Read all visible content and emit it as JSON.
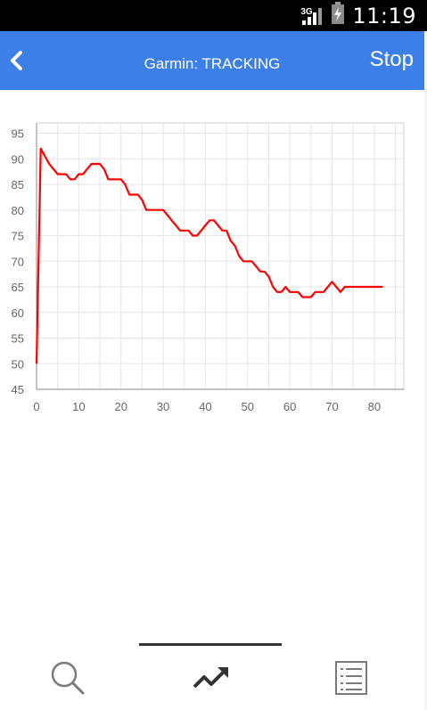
{
  "status_bar": {
    "time": "11:19",
    "network": "3G",
    "icons": [
      "signal-icon",
      "battery-charging-icon"
    ]
  },
  "app_bar": {
    "title": "Garmin: TRACKING",
    "stop_label": "Stop",
    "back_icon": "chevron-left-icon",
    "color": "#3d7fe8"
  },
  "chart_data": {
    "type": "line",
    "title": "",
    "xlabel": "",
    "ylabel": "",
    "xlim": [
      0,
      87
    ],
    "ylim": [
      45,
      97
    ],
    "x_ticks": [
      0,
      10,
      20,
      30,
      40,
      50,
      60,
      70,
      80
    ],
    "y_ticks": [
      45,
      50,
      55,
      60,
      65,
      70,
      75,
      80,
      85,
      90,
      95
    ],
    "grid": true,
    "line_color": "#ff0000",
    "series": [
      {
        "points": [
          [
            0,
            50
          ],
          [
            1,
            92
          ],
          [
            3,
            89
          ],
          [
            4,
            88
          ],
          [
            5,
            87
          ],
          [
            6,
            87
          ],
          [
            7,
            87
          ],
          [
            8,
            86
          ],
          [
            9,
            86
          ],
          [
            10,
            87
          ],
          [
            11,
            87
          ],
          [
            12,
            88
          ],
          [
            13,
            89
          ],
          [
            14,
            89
          ],
          [
            15,
            89
          ],
          [
            16,
            88
          ],
          [
            17,
            86
          ],
          [
            18,
            86
          ],
          [
            19,
            86
          ],
          [
            20,
            86
          ],
          [
            21,
            85
          ],
          [
            22,
            83
          ],
          [
            23,
            83
          ],
          [
            24,
            83
          ],
          [
            25,
            82
          ],
          [
            26,
            80
          ],
          [
            27,
            80
          ],
          [
            28,
            80
          ],
          [
            29,
            80
          ],
          [
            30,
            80
          ],
          [
            31,
            79
          ],
          [
            32,
            78
          ],
          [
            33,
            77
          ],
          [
            34,
            76
          ],
          [
            35,
            76
          ],
          [
            36,
            76
          ],
          [
            37,
            75
          ],
          [
            38,
            75
          ],
          [
            39,
            76
          ],
          [
            40,
            77
          ],
          [
            41,
            78
          ],
          [
            42,
            78
          ],
          [
            43,
            77
          ],
          [
            44,
            76
          ],
          [
            45,
            76
          ],
          [
            46,
            74
          ],
          [
            47,
            73
          ],
          [
            48,
            71
          ],
          [
            49,
            70
          ],
          [
            50,
            70
          ],
          [
            51,
            70
          ],
          [
            52,
            69
          ],
          [
            53,
            68
          ],
          [
            54,
            68
          ],
          [
            55,
            67
          ],
          [
            56,
            65
          ],
          [
            57,
            64
          ],
          [
            58,
            64
          ],
          [
            59,
            65
          ],
          [
            60,
            64
          ],
          [
            61,
            64
          ],
          [
            62,
            64
          ],
          [
            63,
            63
          ],
          [
            64,
            63
          ],
          [
            65,
            63
          ],
          [
            66,
            64
          ],
          [
            67,
            64
          ],
          [
            68,
            64
          ],
          [
            69,
            65
          ],
          [
            70,
            66
          ],
          [
            71,
            65
          ],
          [
            72,
            64
          ],
          [
            73,
            65
          ],
          [
            74,
            65
          ],
          [
            75,
            65
          ],
          [
            76,
            65
          ],
          [
            77,
            65
          ],
          [
            78,
            65
          ],
          [
            79,
            65
          ],
          [
            80,
            65
          ],
          [
            81,
            65
          ],
          [
            82,
            65
          ]
        ]
      }
    ]
  },
  "tab_bar": {
    "tabs": [
      {
        "icon": "search-icon",
        "selected": false
      },
      {
        "icon": "trending-icon",
        "selected": true
      },
      {
        "icon": "list-icon",
        "selected": false
      }
    ]
  }
}
